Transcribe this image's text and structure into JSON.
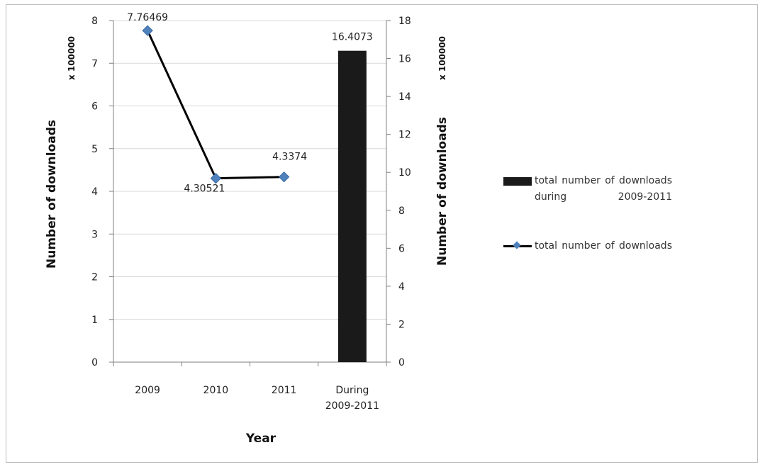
{
  "chart_data": {
    "type": "bar+line",
    "categories": [
      "2009",
      "2010",
      "2011",
      "During\n2009-2011"
    ],
    "series": [
      {
        "name": "total number of downloads during 2009-2011",
        "kind": "bar",
        "axis": "right",
        "values": [
          null,
          null,
          null,
          16.4073
        ],
        "labels": [
          "",
          "",
          "",
          "16.4073"
        ],
        "color": "#1a1a1a"
      },
      {
        "name": "total number of downloads",
        "kind": "line",
        "axis": "left",
        "values": [
          7.76469,
          4.30521,
          4.3374,
          null
        ],
        "labels": [
          "7.76469",
          "4.30521",
          "4.3374",
          ""
        ],
        "color": "#000000",
        "marker_color": "#4f81bd"
      }
    ],
    "xlabel": "Year",
    "ylabel_left": "Number of downloads",
    "ylabel_right": "Number of downloads",
    "y_multiplier_left": "x 100000",
    "y_multiplier_right": "x 100000",
    "ylim_left": [
      0,
      8
    ],
    "yticks_left": [
      "0",
      "1",
      "2",
      "3",
      "4",
      "5",
      "6",
      "7",
      "8"
    ],
    "ylim_right": [
      0,
      18
    ],
    "yticks_right": [
      "0",
      "2",
      "4",
      "6",
      "8",
      "10",
      "12",
      "14",
      "16",
      "18"
    ],
    "grid": true,
    "legend_position": "right"
  },
  "legend": {
    "bar_label": "total number of downloads during 2009-2011",
    "line_label": "total number of downloads"
  }
}
